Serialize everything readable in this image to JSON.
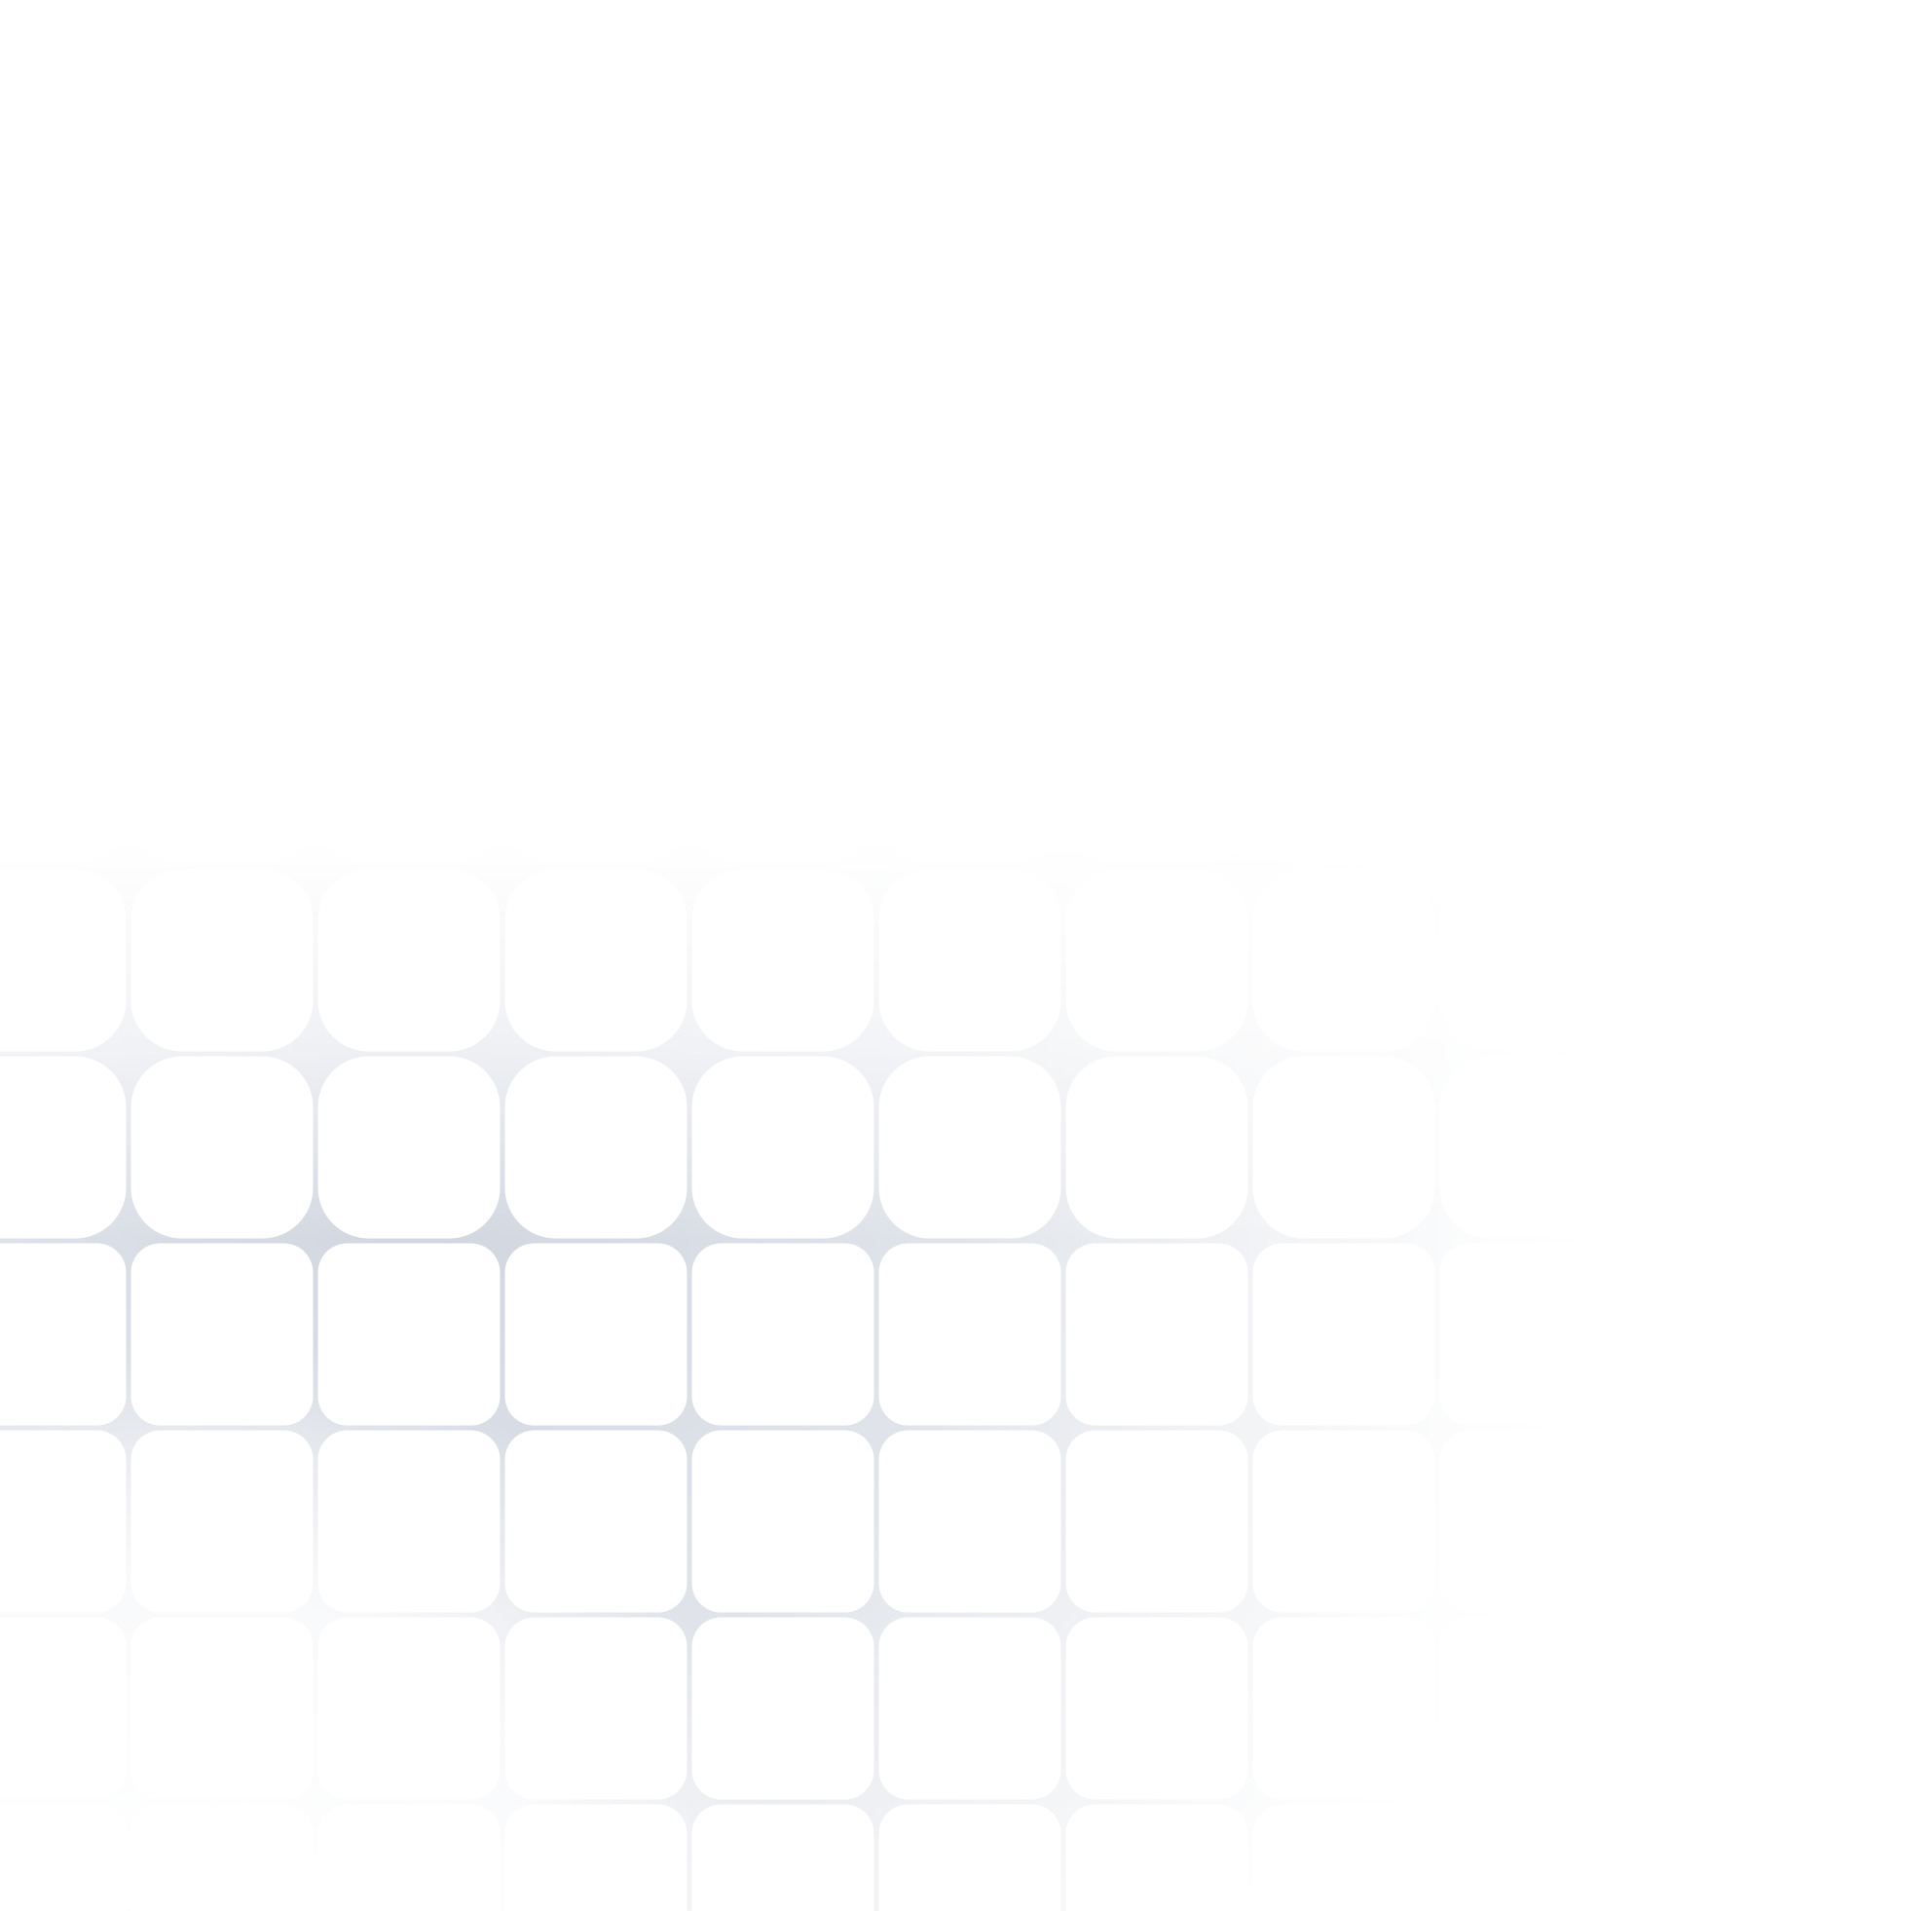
{
  "colors": {
    "background": "#ffffff",
    "grid_line": "#d3d8e2",
    "cell": "#ffffff"
  }
}
